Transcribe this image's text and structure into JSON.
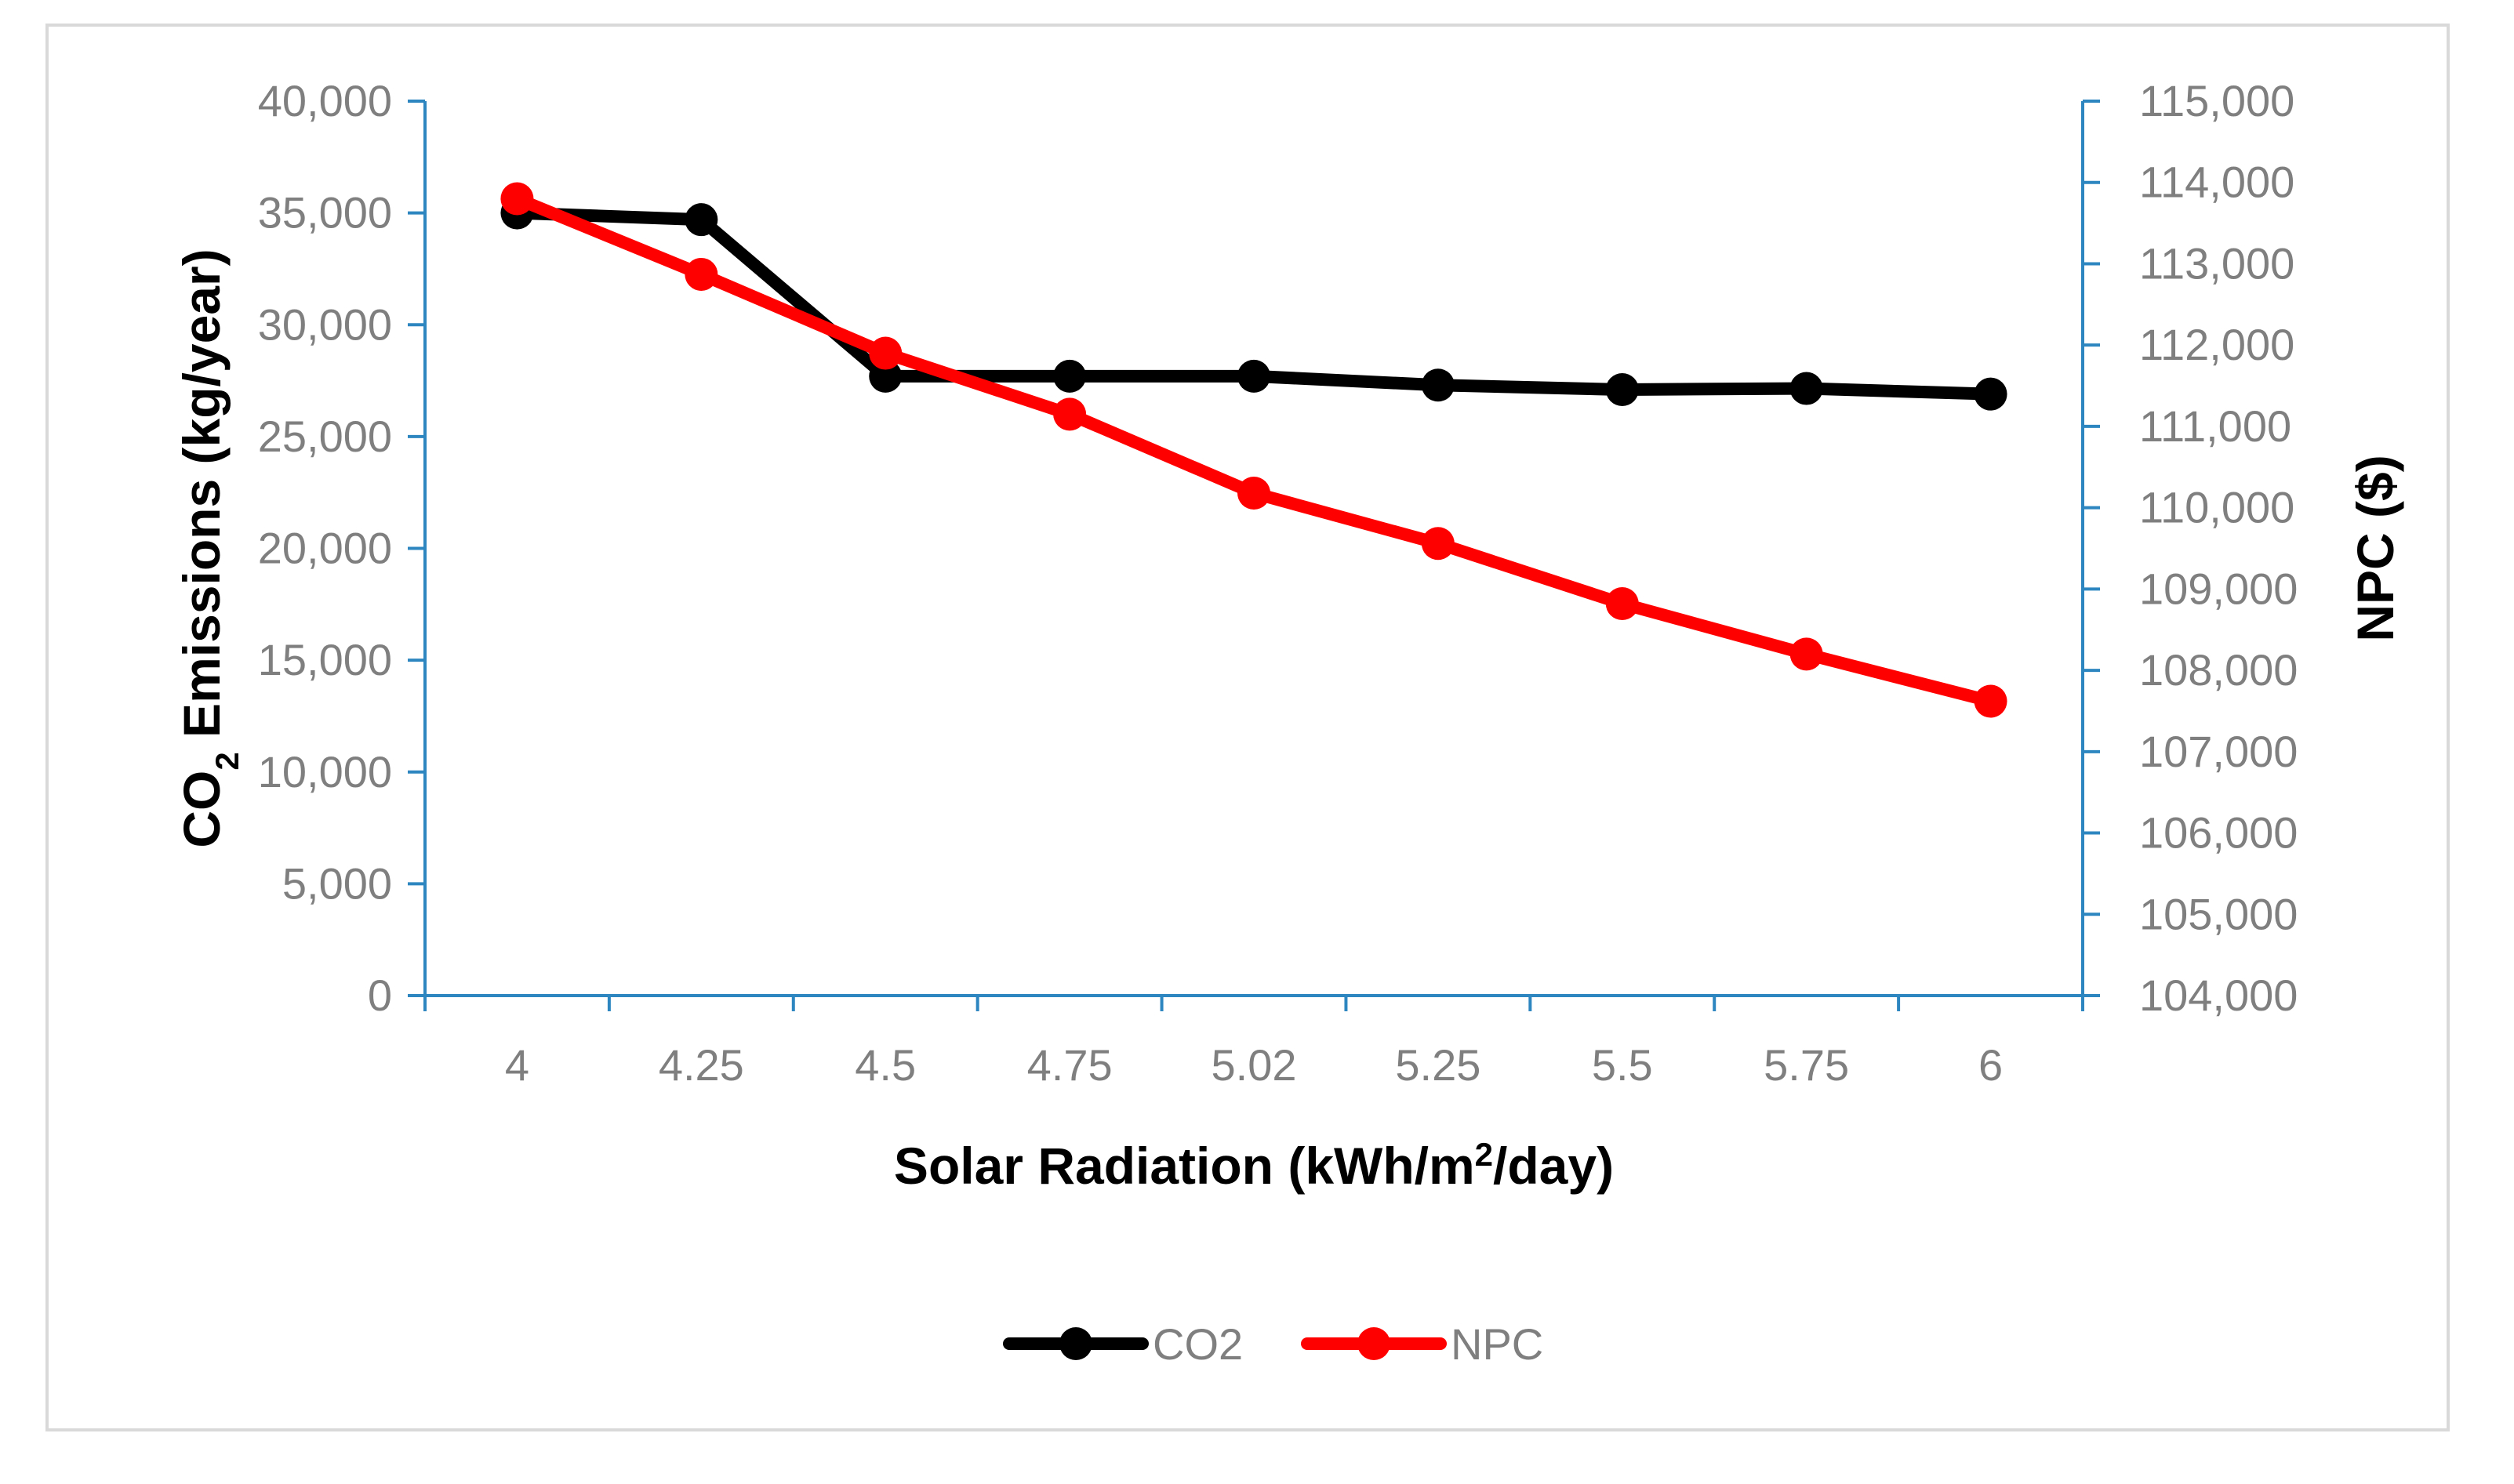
{
  "chart_data": {
    "type": "line",
    "title": "",
    "categories": [
      "4",
      "4.25",
      "4.5",
      "4.75",
      "5.02",
      "5.25",
      "5.5",
      "5.75",
      "6"
    ],
    "xlabel": {
      "prefix": "Solar Radiation (kWh/m",
      "sup": "2",
      "suffix": "/day)"
    },
    "ylabel_left": {
      "prefix": "CO",
      "sub": "2",
      "suffix": " Emissions (kg/year)"
    },
    "ylabel_right": "NPC ($)",
    "y_left": {
      "min": 0,
      "max": 40000,
      "step": 5000,
      "ticks": [
        "0",
        "5,000",
        "10,000",
        "15,000",
        "20,000",
        "25,000",
        "30,000",
        "35,000",
        "40,000"
      ]
    },
    "y_right": {
      "min": 104000,
      "max": 115000,
      "step": 1000,
      "ticks": [
        "104,000",
        "105,000",
        "106,000",
        "107,000",
        "108,000",
        "109,000",
        "110,000",
        "111,000",
        "112,000",
        "113,000",
        "114,000",
        "115,000"
      ]
    },
    "series": [
      {
        "name": "CO2",
        "axis": "left",
        "color": "#000000",
        "values": [
          35000,
          34700,
          27700,
          27700,
          27700,
          27300,
          27100,
          27150,
          26900
        ]
      },
      {
        "name": "NPC",
        "axis": "right",
        "color": "#ff0000",
        "values": [
          113800,
          112870,
          111900,
          111150,
          110180,
          109560,
          108820,
          108200,
          107620
        ]
      }
    ],
    "legend_position": "bottom",
    "grid": false,
    "axis_color": "#2e86c1"
  }
}
